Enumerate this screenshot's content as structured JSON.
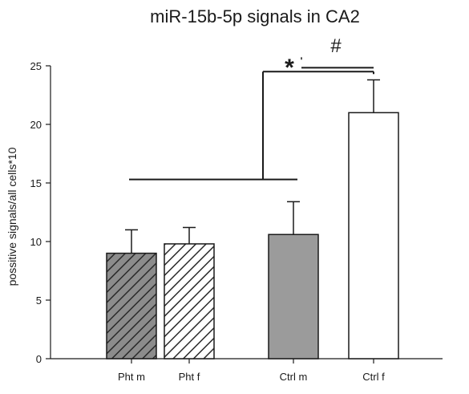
{
  "chart_data": {
    "type": "bar",
    "title": "miR-15b-5p signals in CA2",
    "xlabel": "",
    "ylabel": "possitive signals/all cells*10",
    "ylim": [
      0,
      25
    ],
    "yticks": [
      0,
      5,
      10,
      15,
      20,
      25
    ],
    "categories": [
      "Pht m",
      "Pht f",
      "Ctrl m",
      "Ctrl f"
    ],
    "values": [
      9.0,
      9.8,
      10.6,
      21.0
    ],
    "error_upper": [
      2.0,
      1.4,
      2.8,
      2.8
    ],
    "fill_styles": [
      "hatched-dark",
      "hatched-light",
      "solid-gray",
      "open"
    ],
    "fill_colors": [
      "#8c8c8c",
      "#ffffff",
      "#9b9b9b",
      "#ffffff"
    ],
    "grid": false,
    "legend": "none",
    "significance": [
      {
        "symbol": "*",
        "from_categories": [
          "Pht m",
          "Pht f",
          "Ctrl m"
        ],
        "to_category": "Ctrl f",
        "level": 15.3,
        "top_level": 24.5
      },
      {
        "symbol": "#",
        "from_category": "Ctrl m",
        "to_category": "Ctrl f",
        "level": 24.2,
        "top_level": 25.8
      }
    ]
  }
}
